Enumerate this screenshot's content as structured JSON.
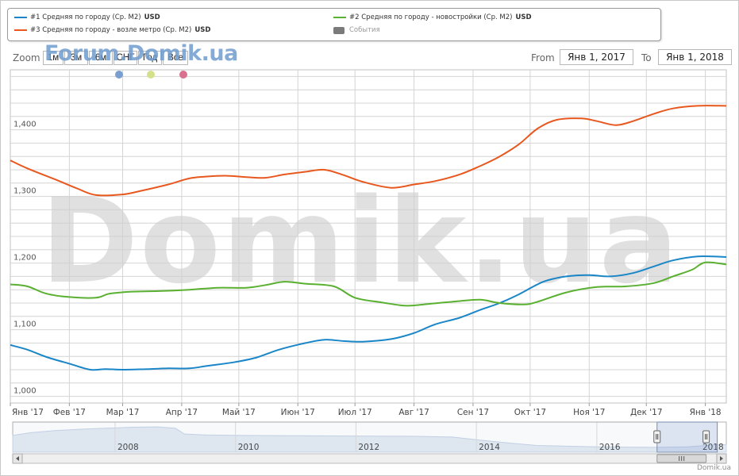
{
  "legend": {
    "series1": "#1 Средняя по городу (Ср. M2)",
    "series2": "#2 Средняя по городу - новостройки (Ср. M2)",
    "series3": "#3 Средняя по городу - возле метро (Ср. M2)",
    "unit": "USD",
    "events": "События"
  },
  "toolbar": {
    "zoom_label": "Zoom",
    "zoom_buttons": [
      "1м",
      "3м",
      "6м",
      "СНГ",
      "Год",
      "Все"
    ],
    "from_label": "From",
    "from_value": "Янв 1, 2017",
    "to_label": "To",
    "to_value": "Янв 1, 2018"
  },
  "watermark": {
    "top": "Forum.Domik.ua",
    "center": "Domik.ua"
  },
  "credits": "Domik.ua",
  "colors": {
    "series1": "#1a86c8",
    "series2": "#5ab031",
    "series3": "#e8581e",
    "marker1": "#7a9fcf",
    "marker2": "#d4e08a",
    "marker3": "#d9708e"
  },
  "chart_data": {
    "type": "line",
    "x_ticks": [
      "Янв '17",
      "Фев '17",
      "Мар '17",
      "Апр '17",
      "Май '17",
      "Июн '17",
      "Июл '17",
      "Авг '17",
      "Сен '17",
      "Окт '17",
      "Ноя '17",
      "Дек '17",
      "Янв '18"
    ],
    "y_ticks": [
      "1,000",
      "1,100",
      "1,200",
      "1,300",
      "1,400"
    ],
    "y_tick_values": [
      1000,
      1100,
      1200,
      1300,
      1400
    ],
    "ylim": [
      990,
      1490
    ],
    "x_range": [
      "2017-01-01",
      "2018-01-12"
    ],
    "grid": true,
    "series": [
      {
        "name": "#1 Средняя по городу (Ср. M2)",
        "points": [
          [
            "2017-01-01",
            1077
          ],
          [
            "2017-01-10",
            1070
          ],
          [
            "2017-01-20",
            1059
          ],
          [
            "2017-02-01",
            1049
          ],
          [
            "2017-02-12",
            1040
          ],
          [
            "2017-02-20",
            1041
          ],
          [
            "2017-03-01",
            1040
          ],
          [
            "2017-03-15",
            1041
          ],
          [
            "2017-03-25",
            1042
          ],
          [
            "2017-04-05",
            1042
          ],
          [
            "2017-04-15",
            1046
          ],
          [
            "2017-04-28",
            1051
          ],
          [
            "2017-05-10",
            1058
          ],
          [
            "2017-05-22",
            1070
          ],
          [
            "2017-06-05",
            1080
          ],
          [
            "2017-06-15",
            1085
          ],
          [
            "2017-06-25",
            1083
          ],
          [
            "2017-07-05",
            1082
          ],
          [
            "2017-07-20",
            1086
          ],
          [
            "2017-08-01",
            1095
          ],
          [
            "2017-08-12",
            1108
          ],
          [
            "2017-08-25",
            1118
          ],
          [
            "2017-09-05",
            1130
          ],
          [
            "2017-09-15",
            1140
          ],
          [
            "2017-09-25",
            1153
          ],
          [
            "2017-10-08",
            1172
          ],
          [
            "2017-10-20",
            1180
          ],
          [
            "2017-11-01",
            1182
          ],
          [
            "2017-11-12",
            1180
          ],
          [
            "2017-11-24",
            1185
          ],
          [
            "2017-12-05",
            1195
          ],
          [
            "2017-12-15",
            1204
          ],
          [
            "2017-12-28",
            1210
          ],
          [
            "2018-01-12",
            1209
          ]
        ]
      },
      {
        "name": "#2 Средняя по городу - новостройки (Ср. M2)",
        "points": [
          [
            "2017-01-01",
            1168
          ],
          [
            "2017-01-10",
            1165
          ],
          [
            "2017-01-20",
            1154
          ],
          [
            "2017-02-01",
            1149
          ],
          [
            "2017-02-15",
            1148
          ],
          [
            "2017-02-22",
            1154
          ],
          [
            "2017-03-05",
            1157
          ],
          [
            "2017-03-20",
            1158
          ],
          [
            "2017-04-05",
            1160
          ],
          [
            "2017-04-20",
            1163
          ],
          [
            "2017-05-05",
            1163
          ],
          [
            "2017-05-15",
            1167
          ],
          [
            "2017-05-25",
            1172
          ],
          [
            "2017-06-05",
            1169
          ],
          [
            "2017-06-20",
            1165
          ],
          [
            "2017-07-01",
            1148
          ],
          [
            "2017-07-15",
            1141
          ],
          [
            "2017-07-28",
            1136
          ],
          [
            "2017-08-10",
            1139
          ],
          [
            "2017-08-25",
            1143
          ],
          [
            "2017-09-05",
            1145
          ],
          [
            "2017-09-15",
            1140
          ],
          [
            "2017-09-28",
            1138
          ],
          [
            "2017-10-05",
            1142
          ],
          [
            "2017-10-20",
            1156
          ],
          [
            "2017-11-05",
            1164
          ],
          [
            "2017-11-20",
            1165
          ],
          [
            "2017-12-05",
            1170
          ],
          [
            "2017-12-15",
            1180
          ],
          [
            "2017-12-25",
            1190
          ],
          [
            "2018-01-01",
            1201
          ],
          [
            "2018-01-12",
            1198
          ]
        ]
      },
      {
        "name": "#3 Средняя по городу - возле метро (Ср. M2)",
        "points": [
          [
            "2017-01-01",
            1354
          ],
          [
            "2017-01-10",
            1342
          ],
          [
            "2017-01-25",
            1325
          ],
          [
            "2017-02-05",
            1312
          ],
          [
            "2017-02-15",
            1302
          ],
          [
            "2017-03-01",
            1303
          ],
          [
            "2017-03-10",
            1308
          ],
          [
            "2017-03-25",
            1318
          ],
          [
            "2017-04-05",
            1327
          ],
          [
            "2017-04-15",
            1330
          ],
          [
            "2017-04-25",
            1331
          ],
          [
            "2017-05-05",
            1329
          ],
          [
            "2017-05-15",
            1328
          ],
          [
            "2017-05-25",
            1333
          ],
          [
            "2017-06-05",
            1337
          ],
          [
            "2017-06-15",
            1340
          ],
          [
            "2017-06-25",
            1332
          ],
          [
            "2017-07-05",
            1322
          ],
          [
            "2017-07-20",
            1313
          ],
          [
            "2017-08-01",
            1318
          ],
          [
            "2017-08-12",
            1323
          ],
          [
            "2017-08-25",
            1333
          ],
          [
            "2017-09-05",
            1346
          ],
          [
            "2017-09-15",
            1360
          ],
          [
            "2017-09-25",
            1378
          ],
          [
            "2017-10-05",
            1402
          ],
          [
            "2017-10-15",
            1415
          ],
          [
            "2017-10-28",
            1417
          ],
          [
            "2017-11-05",
            1413
          ],
          [
            "2017-11-15",
            1407
          ],
          [
            "2017-11-24",
            1413
          ],
          [
            "2017-12-05",
            1424
          ],
          [
            "2017-12-15",
            1432
          ],
          [
            "2017-12-28",
            1436
          ],
          [
            "2018-01-12",
            1436
          ]
        ]
      }
    ],
    "navigator": {
      "x_ticks": [
        "2008",
        "2010",
        "2012",
        "2014",
        "2016",
        "2018"
      ],
      "x_tick_years": [
        2008,
        2010,
        2012,
        2014,
        2016,
        2018
      ],
      "x_range": [
        2006.3,
        2018.15
      ],
      "values": [
        [
          2006.3,
          1250
        ],
        [
          2006.6,
          1290
        ],
        [
          2007.0,
          1320
        ],
        [
          2007.5,
          1345
        ],
        [
          2008.0,
          1360
        ],
        [
          2008.3,
          1370
        ],
        [
          2008.7,
          1375
        ],
        [
          2009.0,
          1355
        ],
        [
          2009.15,
          1270
        ],
        [
          2009.5,
          1255
        ],
        [
          2010.0,
          1250
        ],
        [
          2011.0,
          1245
        ],
        [
          2012.0,
          1240
        ],
        [
          2013.0,
          1235
        ],
        [
          2013.6,
          1225
        ],
        [
          2014.0,
          1185
        ],
        [
          2014.5,
          1140
        ],
        [
          2015.0,
          1100
        ],
        [
          2015.5,
          1090
        ],
        [
          2016.0,
          1080
        ],
        [
          2016.5,
          1075
        ],
        [
          2017.0,
          1072
        ],
        [
          2017.5,
          1080
        ],
        [
          2018.0,
          1110
        ],
        [
          2018.15,
          1112
        ]
      ],
      "ylim": [
        1000,
        1400
      ],
      "selected_range": [
        2017.0,
        2018.0
      ]
    }
  }
}
